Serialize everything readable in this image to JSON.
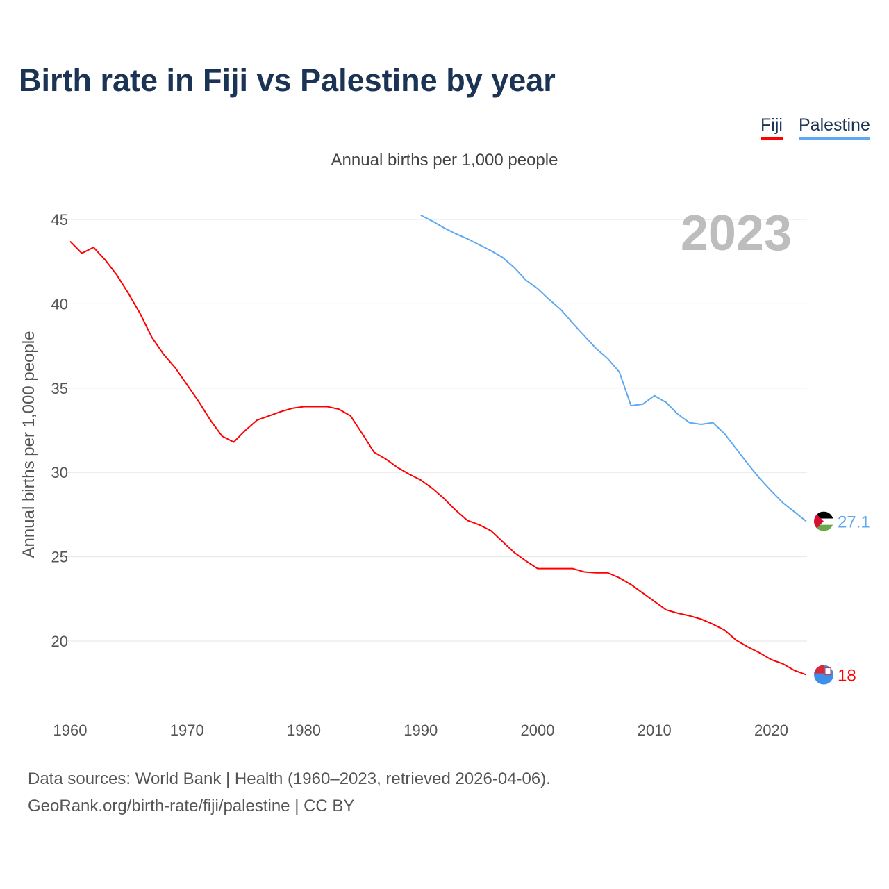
{
  "title": "Birth rate in Fiji vs Palestine by year",
  "legend": [
    {
      "name": "Fiji",
      "color": "#ff0000"
    },
    {
      "name": "Palestine",
      "color": "#5ea8f2"
    }
  ],
  "footer": {
    "line1": "Data sources: World Bank | Health (1960–2023, retrieved 2026-04-06).",
    "line2": "GeoRank.org/birth-rate/fiji/palestine | CC BY"
  },
  "chart_data": {
    "type": "line",
    "title": "Birth rate in Fiji vs Palestine by year",
    "subtitle": "Annual births per 1,000 people",
    "ylabel": "Annual births per 1,000 people",
    "xlabel": "",
    "year_label": "2023",
    "xlim": [
      1960,
      2023
    ],
    "ylim": [
      17,
      46
    ],
    "yticks": [
      20,
      25,
      30,
      35,
      40,
      45
    ],
    "xticks": [
      1960,
      1970,
      1980,
      1990,
      2000,
      2010,
      2020
    ],
    "grid": true,
    "legend_position": "top-right",
    "series": [
      {
        "name": "Fiji",
        "color": "#ff0000",
        "end_label": "18",
        "start": 1960,
        "values": [
          43.7,
          43.0,
          43.35,
          42.6,
          41.7,
          40.6,
          39.4,
          38.0,
          37.0,
          36.2,
          35.2,
          34.2,
          33.1,
          32.15,
          31.8,
          32.5,
          33.1,
          33.35,
          33.6,
          33.8,
          33.9,
          33.9,
          33.9,
          33.75,
          33.35,
          32.3,
          31.2,
          30.8,
          30.3,
          29.9,
          29.55,
          29.05,
          28.45,
          27.75,
          27.15,
          26.9,
          26.55,
          25.9,
          25.25,
          24.75,
          24.3,
          24.3,
          24.3,
          24.3,
          24.1,
          24.05,
          24.05,
          23.75,
          23.35,
          22.85,
          22.35,
          21.85,
          21.65,
          21.5,
          21.3,
          21.0,
          20.65,
          20.05,
          19.65,
          19.3,
          18.9,
          18.65,
          18.25,
          18.0
        ]
      },
      {
        "name": "Palestine",
        "color": "#5ea8f2",
        "end_label": "27.1",
        "start": 1990,
        "values": [
          45.25,
          44.9,
          44.5,
          44.15,
          43.85,
          43.5,
          43.15,
          42.75,
          42.15,
          41.4,
          40.9,
          40.25,
          39.65,
          38.85,
          38.1,
          37.35,
          36.75,
          35.95,
          33.95,
          34.05,
          34.55,
          34.15,
          33.45,
          32.95,
          32.85,
          32.95,
          32.3,
          31.4,
          30.5,
          29.65,
          28.9,
          28.2,
          27.65,
          27.1
        ]
      }
    ]
  }
}
